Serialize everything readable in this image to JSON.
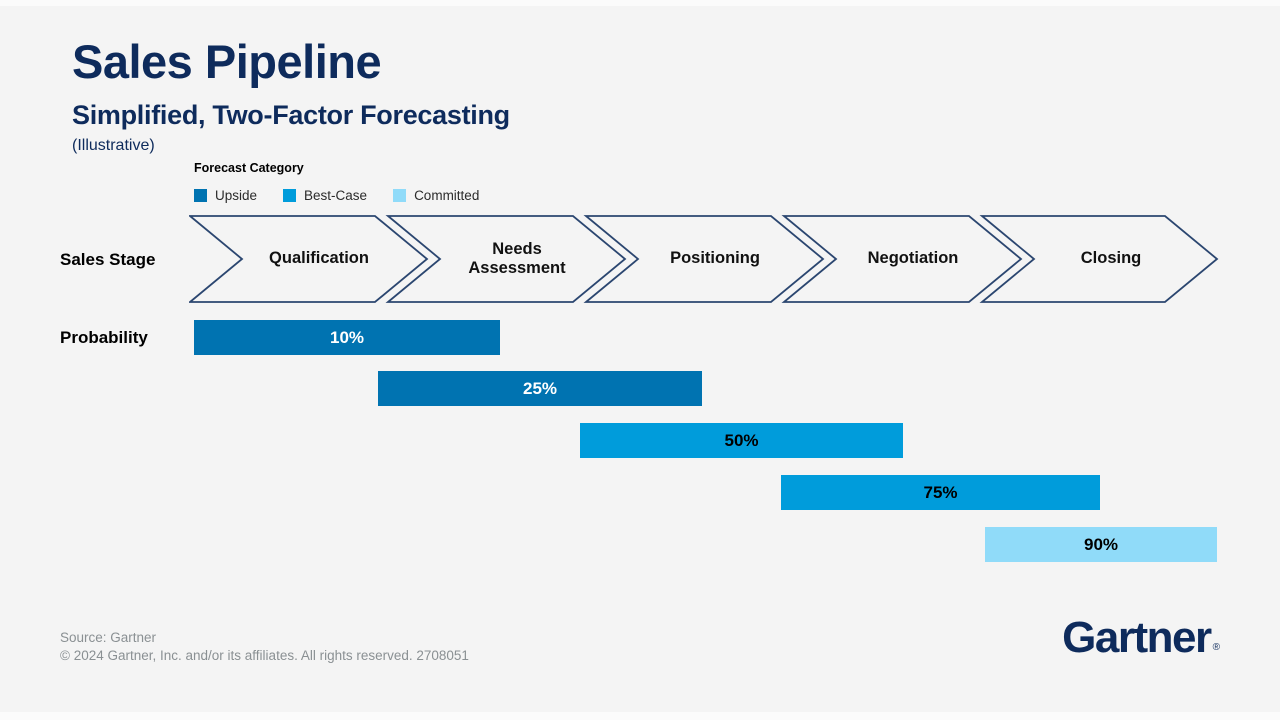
{
  "page": {
    "background": "#F4F4F4"
  },
  "header": {
    "title": "Sales Pipeline",
    "subtitle": "Simplified, Two-Factor Forecasting",
    "note": "(Illustrative)"
  },
  "legend": {
    "title": "Forecast Category"
  },
  "row_labels": {
    "sales_stage": "Sales Stage",
    "probability": "Probability"
  },
  "chart_data": {
    "type": "funnel-bar",
    "title": "Sales Pipeline",
    "subtitle": "Simplified, Two-Factor Forecasting (Illustrative)",
    "legend_title": "Forecast Category",
    "legend_position": "top-left",
    "categories": [
      {
        "name": "Upside",
        "color": "#0073B1",
        "text_color": "#FFFFFF"
      },
      {
        "name": "Best-Case",
        "color": "#009CDB",
        "text_color": "#000000"
      },
      {
        "name": "Committed",
        "color": "#90DBF9",
        "text_color": "#000000"
      }
    ],
    "stages": [
      {
        "stage": "Qualification",
        "probability": 10,
        "label": "10%",
        "forecast_category": "Upside"
      },
      {
        "stage": "Needs Assessment",
        "probability": 25,
        "label": "25%",
        "forecast_category": "Upside"
      },
      {
        "stage": "Positioning",
        "probability": 50,
        "label": "50%",
        "forecast_category": "Best-Case"
      },
      {
        "stage": "Negotiation",
        "probability": 75,
        "label": "75%",
        "forecast_category": "Best-Case"
      },
      {
        "stage": "Closing",
        "probability": 90,
        "label": "90%",
        "forecast_category": "Committed"
      }
    ]
  },
  "footer": {
    "source": "Source: Gartner",
    "copyright": "© 2024 Gartner, Inc. and/or its affiliates. All rights reserved. 2708051",
    "logo_text": "Gartner",
    "registered_mark": "®"
  },
  "colors": {
    "background": "#F4F4F4",
    "title_navy": "#0E2B5C",
    "chevron_stroke": "#2B4670",
    "footer_gray": "#8A9093"
  }
}
